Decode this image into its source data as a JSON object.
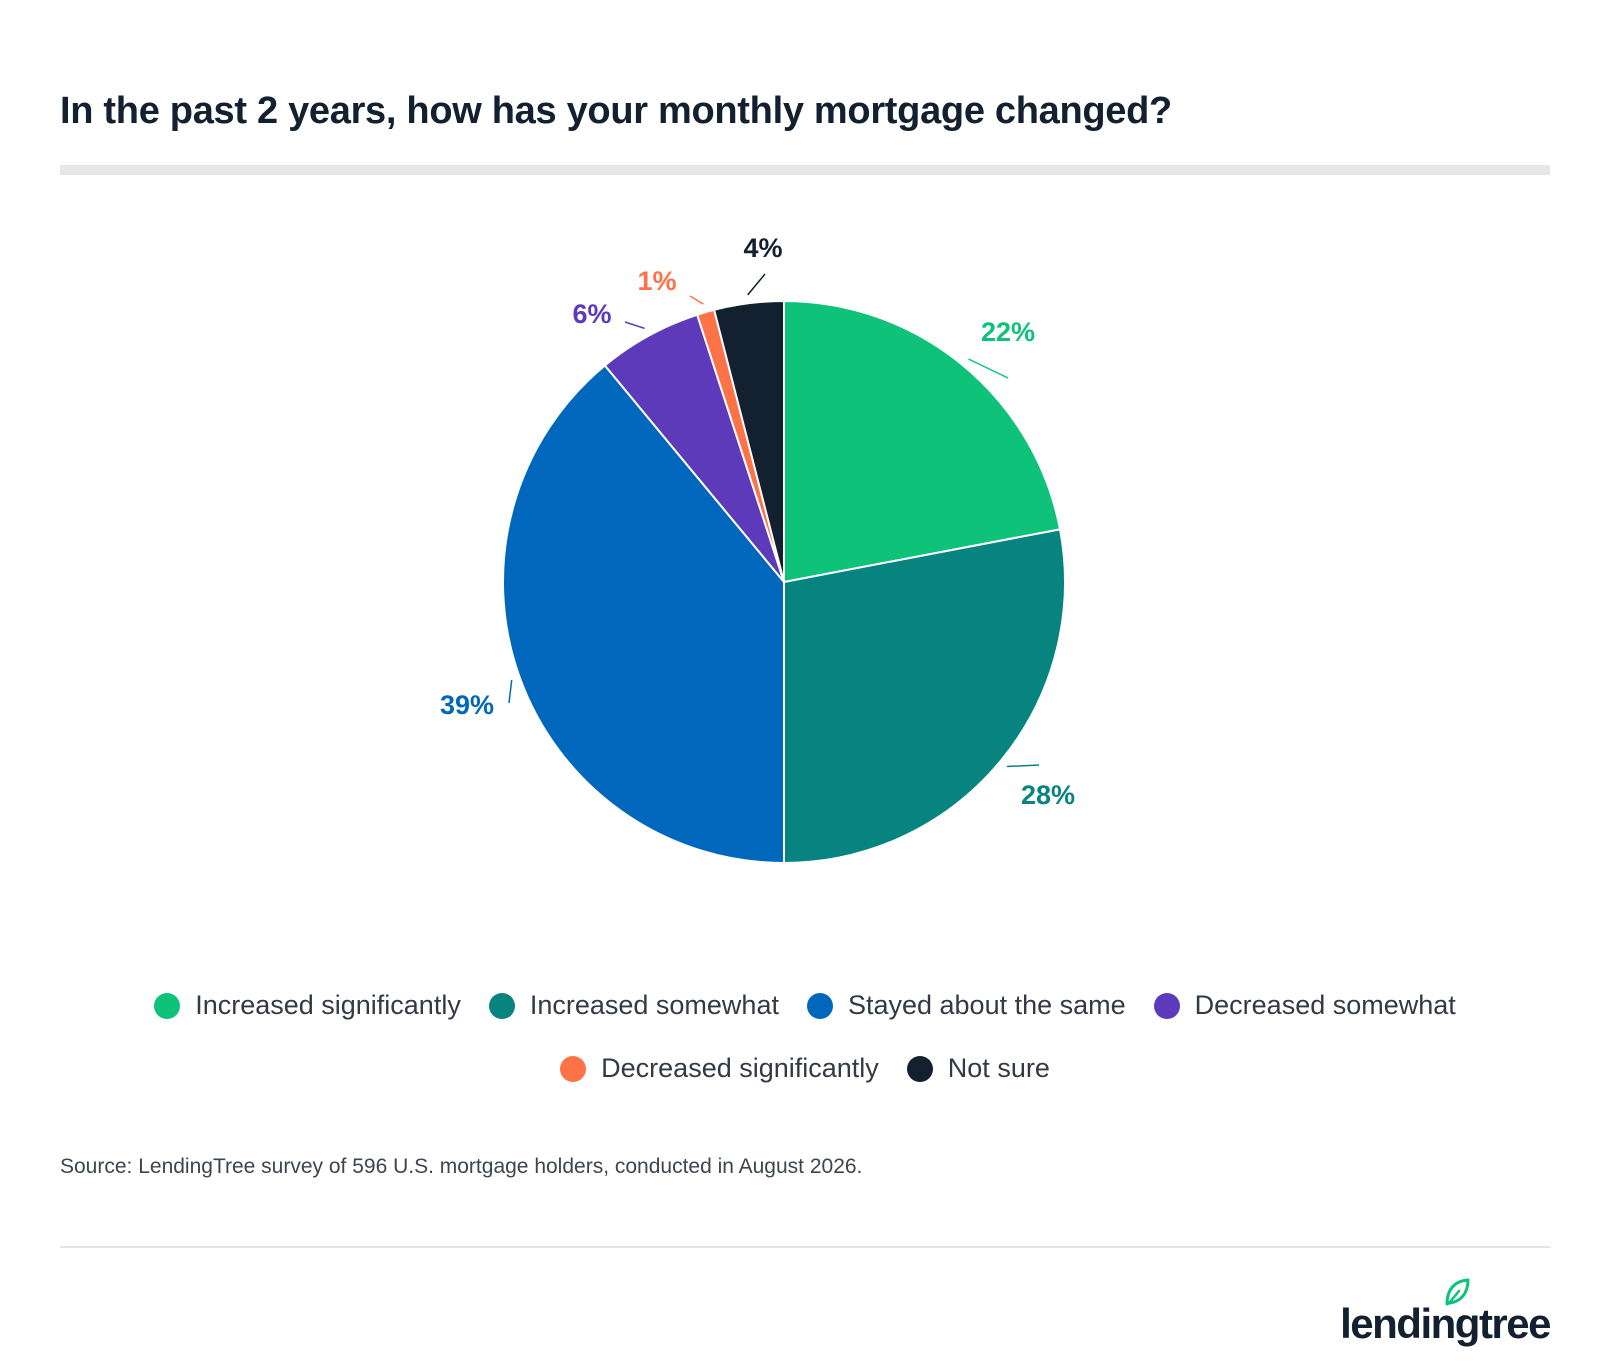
{
  "title": "In the past 2 years, how has your monthly mortgage changed?",
  "source": "Source: LendingTree survey of 596 U.S. mortgage holders, conducted in August 2026.",
  "logo_text": "lendingtree",
  "chart_data": {
    "type": "pie",
    "title": "In the past 2 years, how has your monthly mortgage changed?",
    "legend_placement": "bottom",
    "slices": [
      {
        "name": "Increased significantly",
        "value": 22,
        "label": "22%",
        "color": "#0ec27a"
      },
      {
        "name": "Increased somewhat",
        "value": 28,
        "label": "28%",
        "color": "#078480"
      },
      {
        "name": "Stayed about the same",
        "value": 39,
        "label": "39%",
        "color": "#0068bc"
      },
      {
        "name": "Decreased somewhat",
        "value": 6,
        "label": "6%",
        "color": "#5c3ab9"
      },
      {
        "name": "Decreased significantly",
        "value": 1,
        "label": "1%",
        "color": "#fe7248"
      },
      {
        "name": "Not sure",
        "value": 4,
        "label": "4%",
        "color": "#13202f"
      }
    ]
  },
  "colors": {
    "title": "#13202f",
    "slice_border": "#ffffff"
  },
  "icons": {
    "logo": "lendingtree-leaf-icon"
  }
}
